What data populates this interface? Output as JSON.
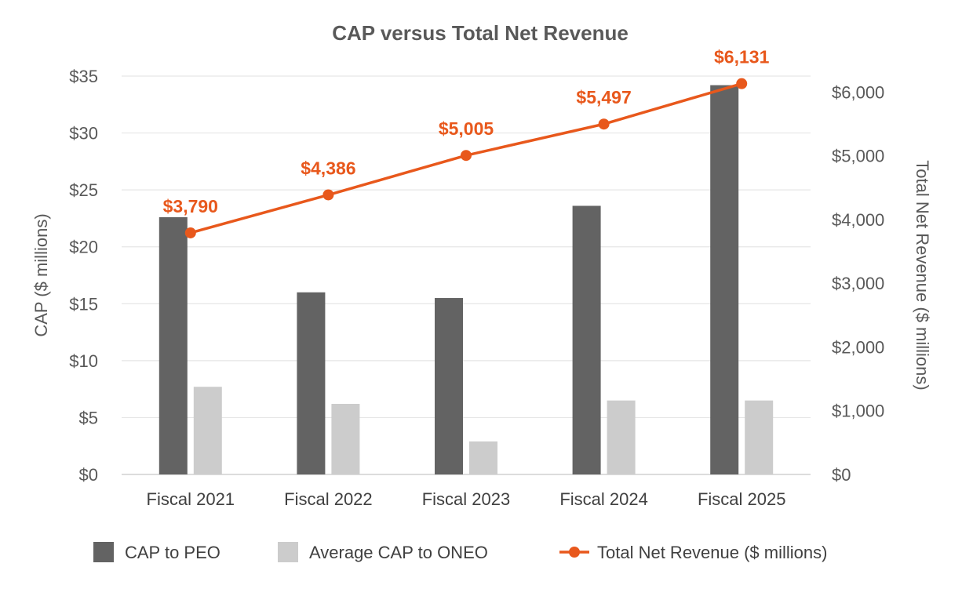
{
  "chart_data": {
    "type": "bar",
    "title": "CAP versus Total Net Revenue",
    "categories": [
      "Fiscal 2021",
      "Fiscal 2022",
      "Fiscal 2023",
      "Fiscal 2024",
      "Fiscal 2025"
    ],
    "series": [
      {
        "name": "CAP to PEO",
        "type": "bar",
        "axis": "left",
        "color": "#636363",
        "values": [
          22.6,
          16.0,
          15.5,
          23.6,
          34.2
        ]
      },
      {
        "name": "Average CAP to ONEO",
        "type": "bar",
        "axis": "left",
        "color": "#cccccc",
        "values": [
          7.7,
          6.2,
          2.9,
          6.5,
          6.5
        ]
      },
      {
        "name": "Total Net Revenue ($ millions)",
        "type": "line",
        "axis": "right",
        "color": "#e8581c",
        "values": [
          3790,
          4386,
          5005,
          5497,
          6131
        ],
        "labels": [
          "$3,790",
          "$4,386",
          "$5,005",
          "$5,497",
          "$6,131"
        ]
      }
    ],
    "ylabel": "CAP ($ millions)",
    "ylabel_right": "Total Net Revenue ($ millions)",
    "ylim": [
      0,
      35
    ],
    "ylim_right": [
      0,
      6250
    ],
    "yticks": [
      0,
      5,
      10,
      15,
      20,
      25,
      30,
      35
    ],
    "ytick_labels": [
      "$0",
      "$5",
      "$10",
      "$15",
      "$20",
      "$25",
      "$30",
      "$35"
    ],
    "yticks_right": [
      0,
      1000,
      2000,
      3000,
      4000,
      5000,
      6000
    ],
    "ytick_labels_right": [
      "$0",
      "$1,000",
      "$2,000",
      "$3,000",
      "$4,000",
      "$5,000",
      "$6,000"
    ],
    "grid": true,
    "legend": "bottom"
  }
}
